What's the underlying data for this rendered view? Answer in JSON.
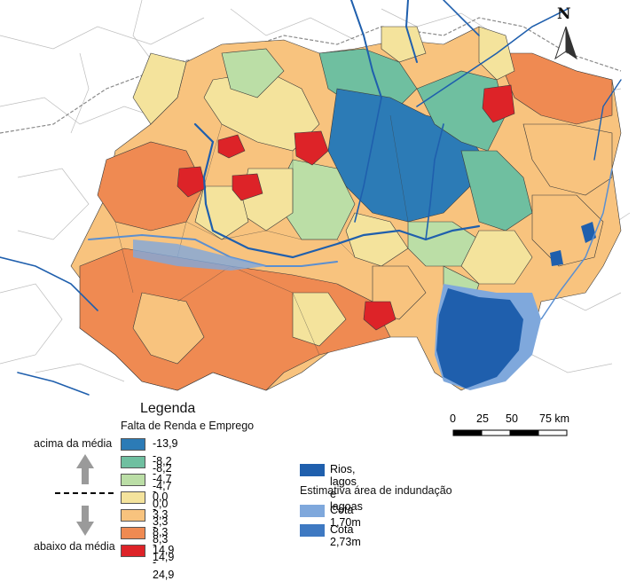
{
  "map": {
    "north_label": "N",
    "colors": {
      "c1": "#2c7bb6",
      "c2": "#6fbfa0",
      "c3": "#bbdea6",
      "c4": "#f4e39c",
      "c5": "#f8c37e",
      "c6": "#ef8a52",
      "c7": "#dd2328",
      "water": "#1f5fad",
      "flood1": "#7fa8dc",
      "flood2": "#3e79c2",
      "outside": "#ffffff",
      "border_gray": "#9a9a9a"
    }
  },
  "legend": {
    "title": "Legenda",
    "subtitle": "Falta de Renda e Emprego",
    "above_label": "acima da média",
    "below_label": "abaixo da média",
    "classes": [
      {
        "label": "-13,9 - -8,2",
        "color": "#2c7bb6"
      },
      {
        "label": "-8,2 - -4,7",
        "color": "#6fbfa0"
      },
      {
        "label": "-4,7 - 0,0",
        "color": "#bbdea6"
      },
      {
        "label": "0,0 - 3,3",
        "color": "#f4e39c"
      },
      {
        "label": "3,3 - 8,3",
        "color": "#f8c37e"
      },
      {
        "label": "8,3 - 14,9",
        "color": "#ef8a52"
      },
      {
        "label": "14,9 - 24,9",
        "color": "#dd2328"
      }
    ]
  },
  "water_legend": {
    "rivers_label": "Rios, lagos e lagoas",
    "flood_title": "Estimativa área de indundação",
    "cota1_label": "Cota 1,70m",
    "cota2_label": "Cota 2,73m"
  },
  "scale": {
    "ticks": [
      "0",
      "25",
      "50",
      "75 km"
    ]
  }
}
